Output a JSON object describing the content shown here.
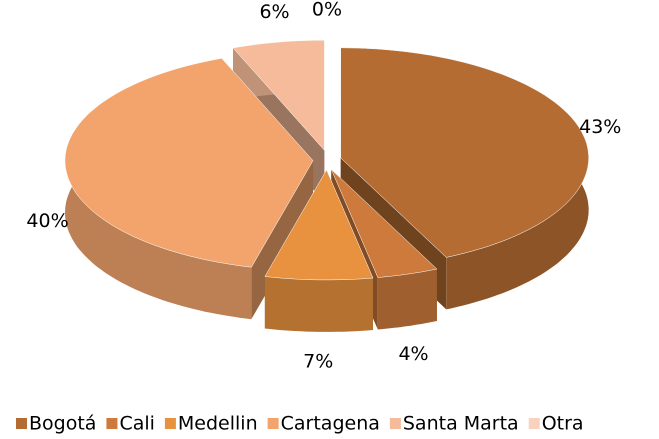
{
  "chart_data": {
    "type": "pie",
    "categories": [
      "Bogotá",
      "Cali",
      "Medellin",
      "Cartagena",
      "Santa Marta",
      "Otra"
    ],
    "values": [
      43,
      4,
      7,
      40,
      6,
      0
    ],
    "value_labels": [
      "43%",
      "4%",
      "7%",
      "40%",
      "6%",
      "0%"
    ],
    "colors": [
      "#b46c32",
      "#cd7a3c",
      "#e8913e",
      "#f2a46c",
      "#f6bb9a",
      "#f9d2bf"
    ],
    "legend": "bottom"
  }
}
